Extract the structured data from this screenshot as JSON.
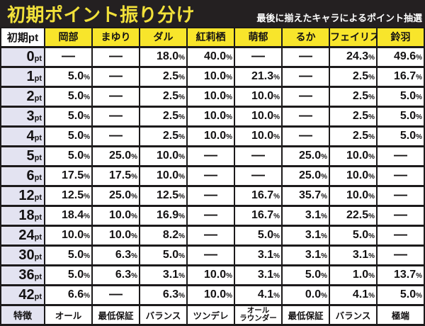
{
  "header": {
    "title": "初期ポイント振り分け",
    "subtitle": "最後に揃えたキャラによるポイント抽選"
  },
  "chart_data": {
    "type": "table",
    "title": "初期ポイント振り分け",
    "subtitle": "最後に揃えたキャラによるポイント抽選",
    "corner_label": "初期pt",
    "pt_unit": "pt",
    "percent_unit": "%",
    "dash": "—",
    "columns": [
      "岡部",
      "まゆり",
      "ダル",
      "紅莉栖",
      "萌郁",
      "るか",
      "フェイリス",
      "鈴羽"
    ],
    "rows": [
      {
        "pt": "0",
        "values": [
          "—",
          "—",
          "18.0",
          "40.0",
          "—",
          "—",
          "24.3",
          "49.6"
        ]
      },
      {
        "pt": "1",
        "values": [
          "5.0",
          "—",
          "2.5",
          "10.0",
          "21.3",
          "—",
          "2.5",
          "16.7"
        ]
      },
      {
        "pt": "2",
        "values": [
          "5.0",
          "—",
          "2.5",
          "10.0",
          "10.0",
          "—",
          "2.5",
          "5.0"
        ]
      },
      {
        "pt": "3",
        "values": [
          "5.0",
          "—",
          "2.5",
          "10.0",
          "10.0",
          "—",
          "2.5",
          "5.0"
        ]
      },
      {
        "pt": "4",
        "values": [
          "5.0",
          "—",
          "2.5",
          "10.0",
          "10.0",
          "—",
          "2.5",
          "5.0"
        ]
      },
      {
        "pt": "5",
        "values": [
          "5.0",
          "25.0",
          "10.0",
          "—",
          "—",
          "25.0",
          "10.0",
          "—"
        ]
      },
      {
        "pt": "6",
        "values": [
          "17.5",
          "17.5",
          "10.0",
          "—",
          "—",
          "25.0",
          "10.0",
          "—"
        ]
      },
      {
        "pt": "12",
        "values": [
          "12.5",
          "25.0",
          "12.5",
          "—",
          "16.7",
          "35.7",
          "10.0",
          "—"
        ]
      },
      {
        "pt": "18",
        "values": [
          "18.4",
          "10.0",
          "16.9",
          "—",
          "16.7",
          "3.1",
          "22.5",
          "—"
        ]
      },
      {
        "pt": "24",
        "values": [
          "10.0",
          "10.0",
          "8.2",
          "—",
          "5.0",
          "3.1",
          "5.0",
          "—"
        ]
      },
      {
        "pt": "30",
        "values": [
          "5.0",
          "6.3",
          "5.0",
          "—",
          "3.1",
          "3.1",
          "3.1",
          "—"
        ]
      },
      {
        "pt": "36",
        "values": [
          "5.0",
          "6.3",
          "3.1",
          "10.0",
          "3.1",
          "5.0",
          "1.0",
          "13.7"
        ]
      },
      {
        "pt": "42",
        "values": [
          "6.6",
          "—",
          "6.3",
          "10.0",
          "4.1",
          "0.0",
          "4.1",
          "5.0"
        ]
      }
    ],
    "feature_row": {
      "label": "特徴",
      "values": [
        "オール",
        "最低保証",
        "バランス",
        "ツンデレ",
        "オール\nラウンダー",
        "最低保証",
        "バランス",
        "極端"
      ]
    }
  },
  "colors": {
    "titlebar_background": "#242021",
    "title_yellow": "#f2e13a",
    "subtitle_white": "#ffffff",
    "header_yellow": "#f8e52b",
    "row_label_lavender": "#e3e3f1",
    "cell_white": "#ffffff",
    "border_black": "#1c1a1b",
    "text_black": "#141213"
  }
}
